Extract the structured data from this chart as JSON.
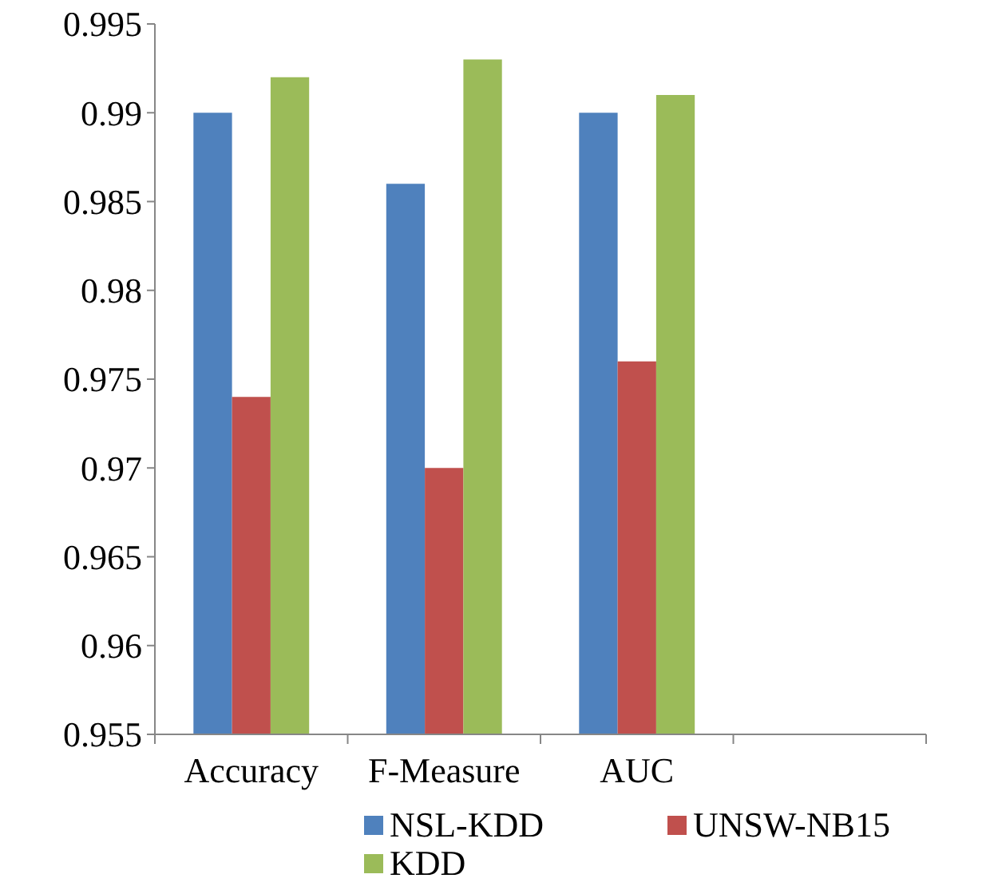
{
  "chart_data": {
    "type": "bar",
    "categories": [
      "Accuracy",
      "F-Measure",
      "AUC",
      null
    ],
    "series": [
      {
        "name": "NSL-KDD",
        "color": "#4f81bd",
        "values": [
          0.99,
          0.986,
          0.99,
          null
        ]
      },
      {
        "name": "UNSW-NB15",
        "color": "#c0504d",
        "values": [
          0.974,
          0.97,
          0.976,
          null
        ]
      },
      {
        "name": "KDD",
        "color": "#9bbb59",
        "values": [
          0.992,
          0.993,
          0.991,
          null
        ]
      }
    ],
    "ylim": [
      0.955,
      0.995
    ],
    "yticks": [
      0.955,
      0.96,
      0.965,
      0.97,
      0.975,
      0.98,
      0.985,
      0.99,
      0.995
    ],
    "grid": false,
    "legend": "bottom"
  }
}
